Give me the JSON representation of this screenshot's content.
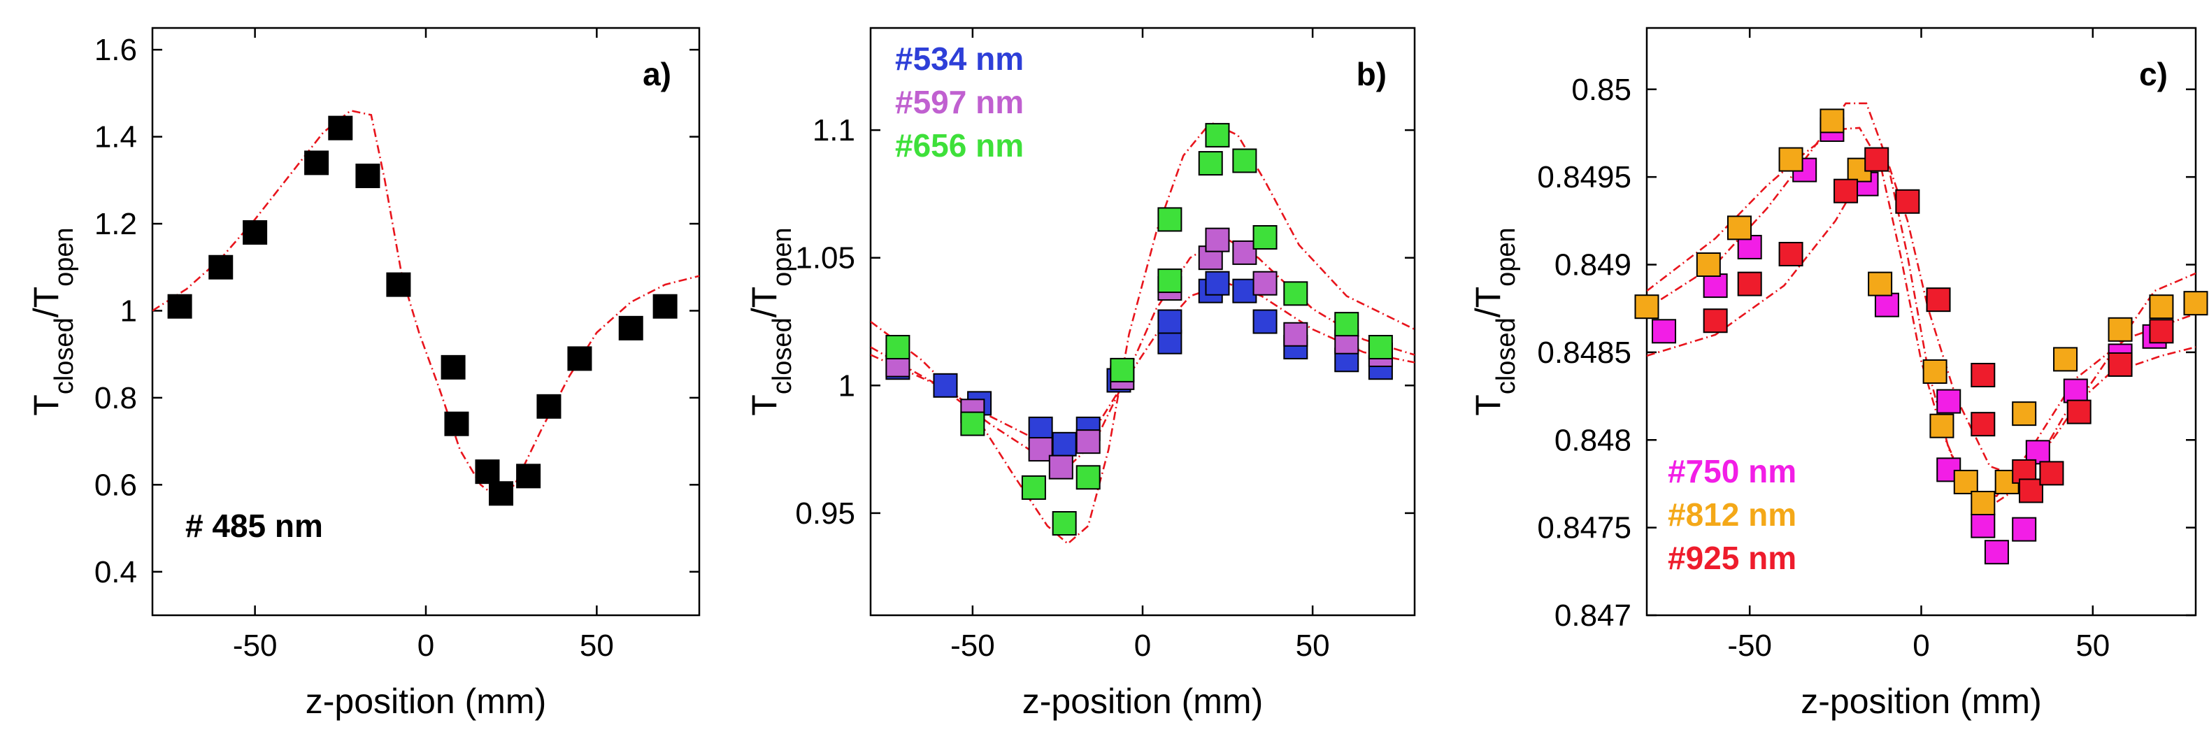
{
  "colors": {
    "fit_line": "#e8141c",
    "marker_edge": "#000000",
    "axis": "#000000",
    "background": "#ffffff"
  },
  "chart_data": [
    {
      "type": "scatter",
      "panel_label": "a)",
      "xlabel": "z-position (mm)",
      "ylabel_main": "T",
      "ylabel_sub1": "closed",
      "ylabel_slash": "/T",
      "ylabel_sub2": "open",
      "xlim": [
        -80,
        80
      ],
      "ylim": [
        0.3,
        1.65
      ],
      "xticks": [
        -50,
        0,
        50
      ],
      "xtick_labels": [
        "-50",
        "0",
        "50"
      ],
      "yticks": [
        0.4,
        0.6,
        0.8,
        1.0,
        1.2,
        1.4,
        1.6
      ],
      "ytick_labels": [
        "0.4",
        "0.6",
        "0.8",
        "1",
        "1.2",
        "1.4",
        "1.6"
      ],
      "legend_position": "bottom-left",
      "series": [
        {
          "name": "# 485 nm",
          "color": "#000000",
          "points": [
            [
              -72,
              1.01
            ],
            [
              -60,
              1.1
            ],
            [
              -50,
              1.18
            ],
            [
              -32,
              1.34
            ],
            [
              -25,
              1.42
            ],
            [
              -17,
              1.31
            ],
            [
              -8,
              1.06
            ],
            [
              8,
              0.87
            ],
            [
              9,
              0.74
            ],
            [
              18,
              0.63
            ],
            [
              22,
              0.58
            ],
            [
              30,
              0.62
            ],
            [
              36,
              0.78
            ],
            [
              45,
              0.89
            ],
            [
              60,
              0.96
            ],
            [
              70,
              1.01
            ]
          ],
          "fits": [
            [
              [
                -80,
                1.0
              ],
              [
                -70,
                1.05
              ],
              [
                -60,
                1.12
              ],
              [
                -50,
                1.21
              ],
              [
                -40,
                1.31
              ],
              [
                -30,
                1.41
              ],
              [
                -22,
                1.46
              ],
              [
                -16,
                1.45
              ],
              [
                -12,
                1.3
              ],
              [
                -7,
                1.08
              ],
              [
                -2,
                0.95
              ],
              [
                4,
                0.82
              ],
              [
                10,
                0.68
              ],
              [
                16,
                0.6
              ],
              [
                21,
                0.57
              ],
              [
                26,
                0.6
              ],
              [
                34,
                0.73
              ],
              [
                42,
                0.85
              ],
              [
                50,
                0.95
              ],
              [
                60,
                1.02
              ],
              [
                70,
                1.06
              ],
              [
                80,
                1.08
              ]
            ]
          ]
        }
      ]
    },
    {
      "type": "scatter",
      "panel_label": "b)",
      "xlabel": "z-position (mm)",
      "ylabel_main": "T",
      "ylabel_sub1": "closed",
      "ylabel_slash": "/T",
      "ylabel_sub2": "open",
      "xlim": [
        -80,
        80
      ],
      "ylim": [
        0.91,
        1.14
      ],
      "xticks": [
        -50,
        0,
        50
      ],
      "xtick_labels": [
        "-50",
        "0",
        "50"
      ],
      "yticks": [
        0.95,
        1.0,
        1.05,
        1.1
      ],
      "ytick_labels": [
        "0.95",
        "1",
        "1.05",
        "1.1"
      ],
      "legend_position": "top-left",
      "series": [
        {
          "name": "#534 nm",
          "color": "#2e3fd8",
          "points": [
            [
              -72,
              1.007
            ],
            [
              -58,
              1.0
            ],
            [
              -48,
              0.993
            ],
            [
              -30,
              0.983
            ],
            [
              -23,
              0.977
            ],
            [
              -16,
              0.983
            ],
            [
              -7,
              1.002
            ],
            [
              8,
              1.017
            ],
            [
              8,
              1.025
            ],
            [
              20,
              1.037
            ],
            [
              22,
              1.04
            ],
            [
              30,
              1.037
            ],
            [
              36,
              1.025
            ],
            [
              45,
              1.015
            ],
            [
              60,
              1.01
            ],
            [
              70,
              1.007
            ]
          ],
          "fits": [
            [
              [
                -80,
                1.012
              ],
              [
                -60,
                1.0
              ],
              [
                -45,
                0.988
              ],
              [
                -30,
                0.978
              ],
              [
                -22,
                0.975
              ],
              [
                -14,
                0.983
              ],
              [
                -6,
                1.0
              ],
              [
                4,
                1.02
              ],
              [
                14,
                1.035
              ],
              [
                25,
                1.04
              ],
              [
                35,
                1.035
              ],
              [
                50,
                1.022
              ],
              [
                65,
                1.013
              ],
              [
                80,
                1.009
              ]
            ]
          ]
        },
        {
          "name": "#597 nm",
          "color": "#c060d0",
          "points": [
            [
              -72,
              1.008
            ],
            [
              -50,
              0.99
            ],
            [
              -30,
              0.975
            ],
            [
              -24,
              0.968
            ],
            [
              -16,
              0.978
            ],
            [
              -6,
              1.003
            ],
            [
              8,
              1.038
            ],
            [
              20,
              1.05
            ],
            [
              22,
              1.057
            ],
            [
              30,
              1.052
            ],
            [
              36,
              1.04
            ],
            [
              45,
              1.02
            ],
            [
              60,
              1.017
            ],
            [
              70,
              1.012
            ]
          ],
          "fits": [
            [
              [
                -80,
                1.015
              ],
              [
                -60,
                1.0
              ],
              [
                -45,
                0.985
              ],
              [
                -30,
                0.972
              ],
              [
                -22,
                0.968
              ],
              [
                -14,
                0.978
              ],
              [
                -6,
                1.0
              ],
              [
                4,
                1.03
              ],
              [
                14,
                1.05
              ],
              [
                24,
                1.058
              ],
              [
                34,
                1.05
              ],
              [
                50,
                1.03
              ],
              [
                65,
                1.018
              ],
              [
                80,
                1.012
              ]
            ]
          ]
        },
        {
          "name": "#656 nm",
          "color": "#3ee03a",
          "points": [
            [
              -72,
              1.015
            ],
            [
              -50,
              0.985
            ],
            [
              -32,
              0.96
            ],
            [
              -23,
              0.946
            ],
            [
              -16,
              0.964
            ],
            [
              -6,
              1.006
            ],
            [
              8,
              1.065
            ],
            [
              8,
              1.041
            ],
            [
              20,
              1.087
            ],
            [
              22,
              1.098
            ],
            [
              30,
              1.088
            ],
            [
              36,
              1.058
            ],
            [
              45,
              1.036
            ],
            [
              60,
              1.024
            ],
            [
              70,
              1.015
            ]
          ],
          "fits": [
            [
              [
                -80,
                1.025
              ],
              [
                -65,
                1.01
              ],
              [
                -50,
                0.99
              ],
              [
                -38,
                0.965
              ],
              [
                -28,
                0.945
              ],
              [
                -22,
                0.938
              ],
              [
                -16,
                0.945
              ],
              [
                -10,
                0.975
              ],
              [
                -4,
                1.02
              ],
              [
                4,
                1.06
              ],
              [
                12,
                1.09
              ],
              [
                20,
                1.103
              ],
              [
                28,
                1.098
              ],
              [
                36,
                1.08
              ],
              [
                46,
                1.055
              ],
              [
                60,
                1.035
              ],
              [
                80,
                1.022
              ]
            ]
          ]
        }
      ]
    },
    {
      "type": "scatter",
      "panel_label": "c)",
      "xlabel": "z-position (mm)",
      "ylabel_main": "T",
      "ylabel_sub1": "closed",
      "ylabel_slash": "/T",
      "ylabel_sub2": "open",
      "xlim": [
        -80,
        80
      ],
      "ylim": [
        0.847,
        0.85035
      ],
      "xticks": [
        -50,
        0,
        50
      ],
      "xtick_labels": [
        "-50",
        "0",
        "50"
      ],
      "yticks": [
        0.847,
        0.8475,
        0.848,
        0.8485,
        0.849,
        0.8495,
        0.85
      ],
      "ytick_labels": [
        "0.847",
        "0.8475",
        "0.848",
        "0.8485",
        "0.849",
        "0.8495",
        "0.85"
      ],
      "legend_position": "bottom-left",
      "series": [
        {
          "name": "#750 nm",
          "color": "#f21ee6",
          "points": [
            [
              -75,
              0.84862
            ],
            [
              -60,
              0.84888
            ],
            [
              -50,
              0.8491
            ],
            [
              -34,
              0.84954
            ],
            [
              -26,
              0.84977
            ],
            [
              -16,
              0.84946
            ],
            [
              -10,
              0.84877
            ],
            [
              8,
              0.84822
            ],
            [
              8,
              0.84783
            ],
            [
              18,
              0.84751
            ],
            [
              22,
              0.84736
            ],
            [
              30,
              0.84749
            ],
            [
              34,
              0.84793
            ],
            [
              45,
              0.84828
            ],
            [
              58,
              0.84848
            ],
            [
              68,
              0.84859
            ]
          ],
          "fits": [
            [
              [
                -80,
                0.84885
              ],
              [
                -60,
                0.84915
              ],
              [
                -45,
                0.84945
              ],
              [
                -35,
                0.84962
              ],
              [
                -25,
                0.84977
              ],
              [
                -18,
                0.84978
              ],
              [
                -12,
                0.84958
              ],
              [
                -6,
                0.84905
              ],
              [
                0,
                0.84845
              ],
              [
                6,
                0.84805
              ],
              [
                12,
                0.84778
              ],
              [
                20,
                0.84762
              ],
              [
                30,
                0.84775
              ],
              [
                42,
                0.84815
              ],
              [
                55,
                0.84838
              ],
              [
                70,
                0.84848
              ],
              [
                80,
                0.84853
              ]
            ]
          ]
        },
        {
          "name": "#812 nm",
          "color": "#f4a818",
          "points": [
            [
              -80,
              0.84876
            ],
            [
              -62,
              0.849
            ],
            [
              -53,
              0.84921
            ],
            [
              -38,
              0.8496
            ],
            [
              -26,
              0.84982
            ],
            [
              -18,
              0.84954
            ],
            [
              -12,
              0.84889
            ],
            [
              4,
              0.84839
            ],
            [
              6,
              0.84808
            ],
            [
              13,
              0.84776
            ],
            [
              18,
              0.84764
            ],
            [
              25,
              0.84776
            ],
            [
              30,
              0.84815
            ],
            [
              42,
              0.84846
            ],
            [
              58,
              0.84863
            ],
            [
              70,
              0.84876
            ],
            [
              80,
              0.84878
            ]
          ],
          "fits": [
            [
              [
                -80,
                0.84875
              ],
              [
                -60,
                0.849
              ],
              [
                -45,
                0.84932
              ],
              [
                -32,
                0.84965
              ],
              [
                -22,
                0.84992
              ],
              [
                -16,
                0.84992
              ],
              [
                -10,
                0.8496
              ],
              [
                -4,
                0.84905
              ],
              [
                2,
                0.8484
              ],
              [
                8,
                0.84795
              ],
              [
                14,
                0.8477
              ],
              [
                22,
                0.84768
              ],
              [
                32,
                0.84795
              ],
              [
                45,
                0.84835
              ],
              [
                60,
                0.84858
              ],
              [
                80,
                0.84872
              ]
            ]
          ]
        },
        {
          "name": "#925 nm",
          "color": "#ee1c2c",
          "points": [
            [
              -60,
              0.84868
            ],
            [
              -50,
              0.84889
            ],
            [
              -38,
              0.84906
            ],
            [
              -22,
              0.84942
            ],
            [
              -13,
              0.8496
            ],
            [
              -4,
              0.84936
            ],
            [
              5,
              0.8488
            ],
            [
              18,
              0.84837
            ],
            [
              18,
              0.84809
            ],
            [
              30,
              0.84782
            ],
            [
              32,
              0.84771
            ],
            [
              38,
              0.84781
            ],
            [
              46,
              0.84816
            ],
            [
              58,
              0.84843
            ],
            [
              70,
              0.84862
            ]
          ],
          "fits": [
            [
              [
                -80,
                0.84848
              ],
              [
                -60,
                0.8486
              ],
              [
                -40,
                0.84888
              ],
              [
                -25,
                0.84925
              ],
              [
                -14,
                0.84962
              ],
              [
                -10,
                0.8496
              ],
              [
                -4,
                0.84925
              ],
              [
                2,
                0.84875
              ],
              [
                10,
                0.84825
              ],
              [
                20,
                0.84785
              ],
              [
                30,
                0.84778
              ],
              [
                40,
                0.84805
              ],
              [
                55,
                0.84848
              ],
              [
                68,
                0.84885
              ],
              [
                80,
                0.84895
              ]
            ]
          ]
        }
      ]
    }
  ]
}
